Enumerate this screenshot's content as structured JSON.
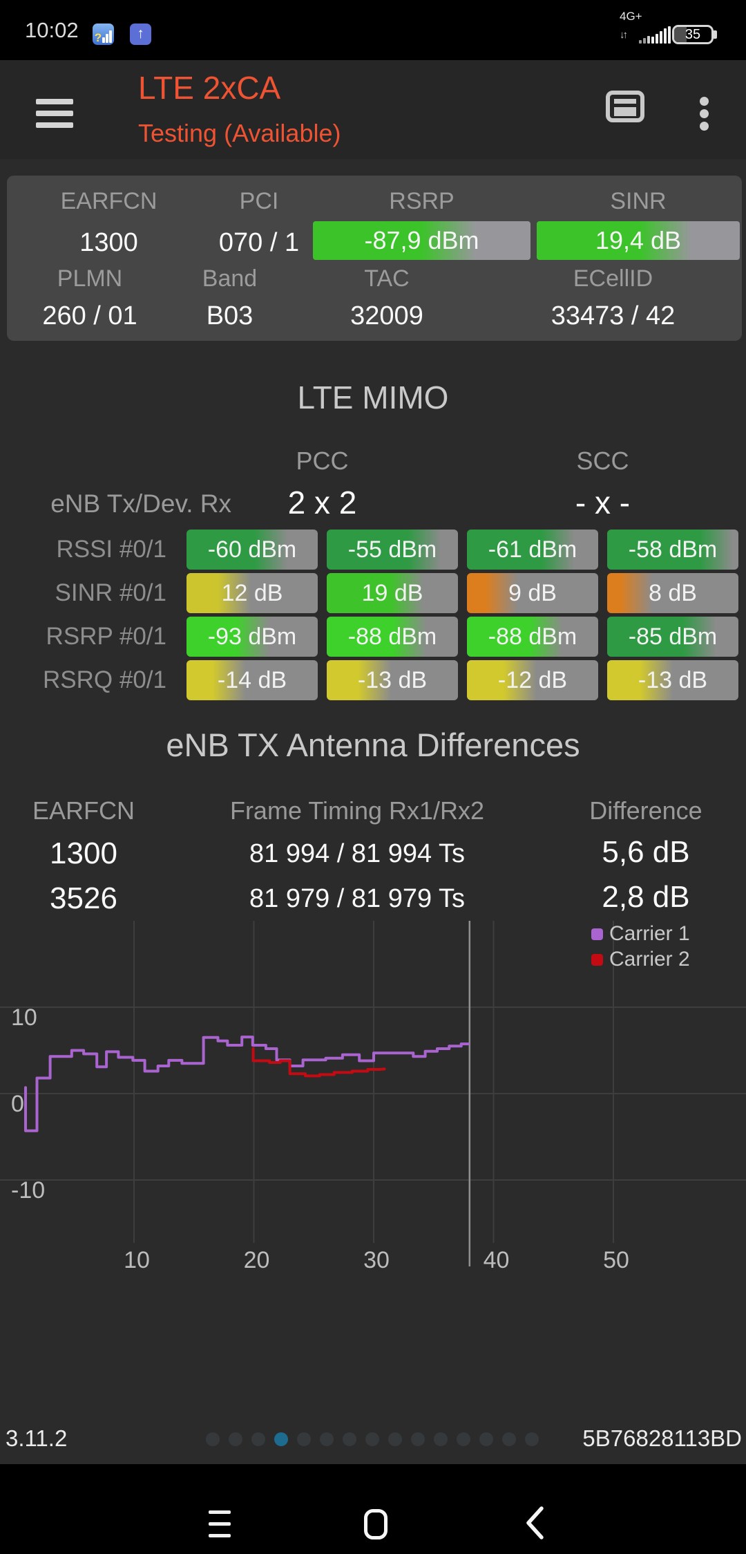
{
  "status_bar": {
    "time": "10:02",
    "network_label": "4G+",
    "battery_level": "35"
  },
  "icons": {
    "notification_up_arrow": "↑",
    "notification_question": "?",
    "updown_arrows": "↓↑"
  },
  "header": {
    "title": "LTE 2xCA",
    "subtitle": "Testing (Available)",
    "accent_color": "#ee5433"
  },
  "info_card": {
    "row1": [
      {
        "label": "EARFCN",
        "value": "1300"
      },
      {
        "label": "PCI",
        "value": "070 / 1"
      },
      {
        "label": "RSRP",
        "value": "-87,9 dBm",
        "bar": {
          "color": "#3cc32a",
          "gray": "#97979b",
          "fill": 0.72
        }
      },
      {
        "label": "SINR",
        "value": "19,4 dB",
        "bar": {
          "color": "#3cc32a",
          "gray": "#97979b",
          "fill": 0.73
        }
      }
    ],
    "row2": [
      {
        "label": "PLMN",
        "value": "260 / 01"
      },
      {
        "label": "Band",
        "value": "B03"
      },
      {
        "label": "TAC",
        "value": "32009"
      },
      {
        "label": "ECellID",
        "value": "33473 / 42"
      }
    ]
  },
  "mimo": {
    "title": "LTE MIMO",
    "col_groups": [
      "PCC",
      "SCC"
    ],
    "enb_row": {
      "label": "eNB Tx/Dev. Rx",
      "pcc": "2 x 2",
      "scc": "- x -"
    },
    "rows": [
      {
        "label": "RSSI #0/1",
        "cells": [
          {
            "value": "-60 dBm",
            "color": "#2f9a44",
            "gray": "#8b8b8b",
            "fill": 0.74
          },
          {
            "value": "-55 dBm",
            "color": "#2f9a44",
            "gray": "#8b8b8b",
            "fill": 0.84
          },
          {
            "value": "-61 dBm",
            "color": "#2f9a44",
            "gray": "#8b8b8b",
            "fill": 0.79
          },
          {
            "value": "-58 dBm",
            "color": "#2f9a44",
            "gray": "#8b8b8b",
            "fill": 0.93
          }
        ]
      },
      {
        "label": "SINR #0/1",
        "cells": [
          {
            "value": "12 dB",
            "color": "#ccc52e",
            "gray": "#8b8b8b",
            "fill": 0.46
          },
          {
            "value": "19 dB",
            "color": "#3fc32a",
            "gray": "#8b8b8b",
            "fill": 0.71
          },
          {
            "value": "9 dB",
            "color": "#dd7e1e",
            "gray": "#8b8b8b",
            "fill": 0.36
          },
          {
            "value": "8 dB",
            "color": "#dd7e1e",
            "gray": "#8b8b8b",
            "fill": 0.32
          }
        ]
      },
      {
        "label": "RSRP #0/1",
        "cells": [
          {
            "value": "-93 dBm",
            "color": "#3ed02b",
            "gray": "#8b8b8b",
            "fill": 0.6
          },
          {
            "value": "-88 dBm",
            "color": "#3ed02b",
            "gray": "#8b8b8b",
            "fill": 0.73
          },
          {
            "value": "-88 dBm",
            "color": "#3ed02b",
            "gray": "#8b8b8b",
            "fill": 0.7
          },
          {
            "value": "-85 dBm",
            "color": "#2f9a44",
            "gray": "#8b8b8b",
            "fill": 0.8
          }
        ]
      },
      {
        "label": "RSRQ #0/1",
        "cells": [
          {
            "value": "-14 dB",
            "color": "#d2c92e",
            "gray": "#8b8b8b",
            "fill": 0.42
          },
          {
            "value": "-13 dB",
            "color": "#d2c92e",
            "gray": "#8b8b8b",
            "fill": 0.46
          },
          {
            "value": "-12 dB",
            "color": "#d2c92e",
            "gray": "#8b8b8b",
            "fill": 0.5
          },
          {
            "value": "-13 dB",
            "color": "#d2c92e",
            "gray": "#8b8b8b",
            "fill": 0.47
          }
        ]
      }
    ]
  },
  "antenna": {
    "title": "eNB TX Antenna Differences",
    "headers": [
      "EARFCN",
      "Frame Timing Rx1/Rx2",
      "Difference"
    ],
    "rows": [
      {
        "earfcn": "1300",
        "timing": "81 994 / 81 994 Ts",
        "diff": "5,6 dB"
      },
      {
        "earfcn": "3526",
        "timing": "81 979 / 81 979 Ts",
        "diff": "2,8 dB"
      }
    ]
  },
  "chart_data": {
    "type": "line",
    "title": "",
    "xlabel": "",
    "ylabel": "",
    "x_ticks": [
      10,
      20,
      30,
      40,
      50
    ],
    "y_ticks": [
      10,
      0,
      -10
    ],
    "xlim": [
      0,
      61
    ],
    "ylim": [
      -18,
      20
    ],
    "grid": true,
    "legend_position": "top-right",
    "cursor_x": 38,
    "grid_color": "#3e3e3e",
    "cursor_color": "#909090",
    "tick_color": "#bdbdbd",
    "series": [
      {
        "name": "Carrier 1",
        "color": "#a964cf",
        "points": [
          [
            0.95,
            0.7
          ],
          [
            0.95,
            -4.3
          ],
          [
            1.9,
            -4.3
          ],
          [
            1.9,
            1.8
          ],
          [
            3,
            1.8
          ],
          [
            3,
            4.3
          ],
          [
            4.8,
            4.3
          ],
          [
            4.8,
            5
          ],
          [
            5.8,
            5
          ],
          [
            5.8,
            4.6
          ],
          [
            6.9,
            4.6
          ],
          [
            6.9,
            3.1
          ],
          [
            7.7,
            3.1
          ],
          [
            7.7,
            4.85
          ],
          [
            8.7,
            4.85
          ],
          [
            8.7,
            4.2
          ],
          [
            9.9,
            4.2
          ],
          [
            9.9,
            3.85
          ],
          [
            10.9,
            3.85
          ],
          [
            10.9,
            2.6
          ],
          [
            12,
            2.6
          ],
          [
            12,
            3.2
          ],
          [
            12.9,
            3.2
          ],
          [
            12.9,
            3.85
          ],
          [
            14,
            3.85
          ],
          [
            14,
            3.5
          ],
          [
            15.8,
            3.5
          ],
          [
            15.8,
            6.5
          ],
          [
            17,
            6.5
          ],
          [
            17,
            6.1
          ],
          [
            17.8,
            6.1
          ],
          [
            17.8,
            5.6
          ],
          [
            19,
            5.6
          ],
          [
            19,
            6.55
          ],
          [
            19.9,
            6.55
          ],
          [
            19.9,
            5.6
          ],
          [
            21,
            5.6
          ],
          [
            21,
            5.2
          ],
          [
            21.9,
            5.2
          ],
          [
            21.9,
            3.9
          ],
          [
            23,
            3.9
          ],
          [
            23,
            3.2
          ],
          [
            24.1,
            3.2
          ],
          [
            24.1,
            3.9
          ],
          [
            26,
            3.9
          ],
          [
            26,
            4.1
          ],
          [
            27.4,
            4.1
          ],
          [
            27.4,
            4.5
          ],
          [
            28.8,
            4.5
          ],
          [
            28.8,
            3.8
          ],
          [
            30,
            3.8
          ],
          [
            30,
            4.7
          ],
          [
            33.3,
            4.7
          ],
          [
            33.3,
            4.3
          ],
          [
            34.3,
            4.3
          ],
          [
            34.3,
            4.9
          ],
          [
            35.3,
            4.9
          ],
          [
            35.3,
            5.2
          ],
          [
            36.3,
            5.2
          ],
          [
            36.3,
            5.5
          ],
          [
            37.3,
            5.5
          ],
          [
            37.3,
            5.75
          ],
          [
            37.9,
            5.75
          ]
        ]
      },
      {
        "name": "Carrier 2",
        "color": "#c40a12",
        "points": [
          [
            19.95,
            5.2
          ],
          [
            19.95,
            3.8
          ],
          [
            21.3,
            3.8
          ],
          [
            21.3,
            3.6
          ],
          [
            22.2,
            3.6
          ],
          [
            22.2,
            3.8
          ],
          [
            23,
            3.8
          ],
          [
            23,
            2.3
          ],
          [
            24.3,
            2.3
          ],
          [
            24.3,
            2.05
          ],
          [
            25.5,
            2.05
          ],
          [
            25.5,
            2.2
          ],
          [
            26.7,
            2.2
          ],
          [
            26.7,
            2.45
          ],
          [
            28.2,
            2.45
          ],
          [
            28.2,
            2.6
          ],
          [
            29.5,
            2.6
          ],
          [
            29.5,
            2.8
          ],
          [
            30.5,
            2.8
          ],
          [
            30.9,
            2.85
          ]
        ]
      }
    ]
  },
  "footer": {
    "version": "3.11.2",
    "device_id": "5B76828113BD",
    "page_count": 15,
    "active_page_index": 3
  }
}
